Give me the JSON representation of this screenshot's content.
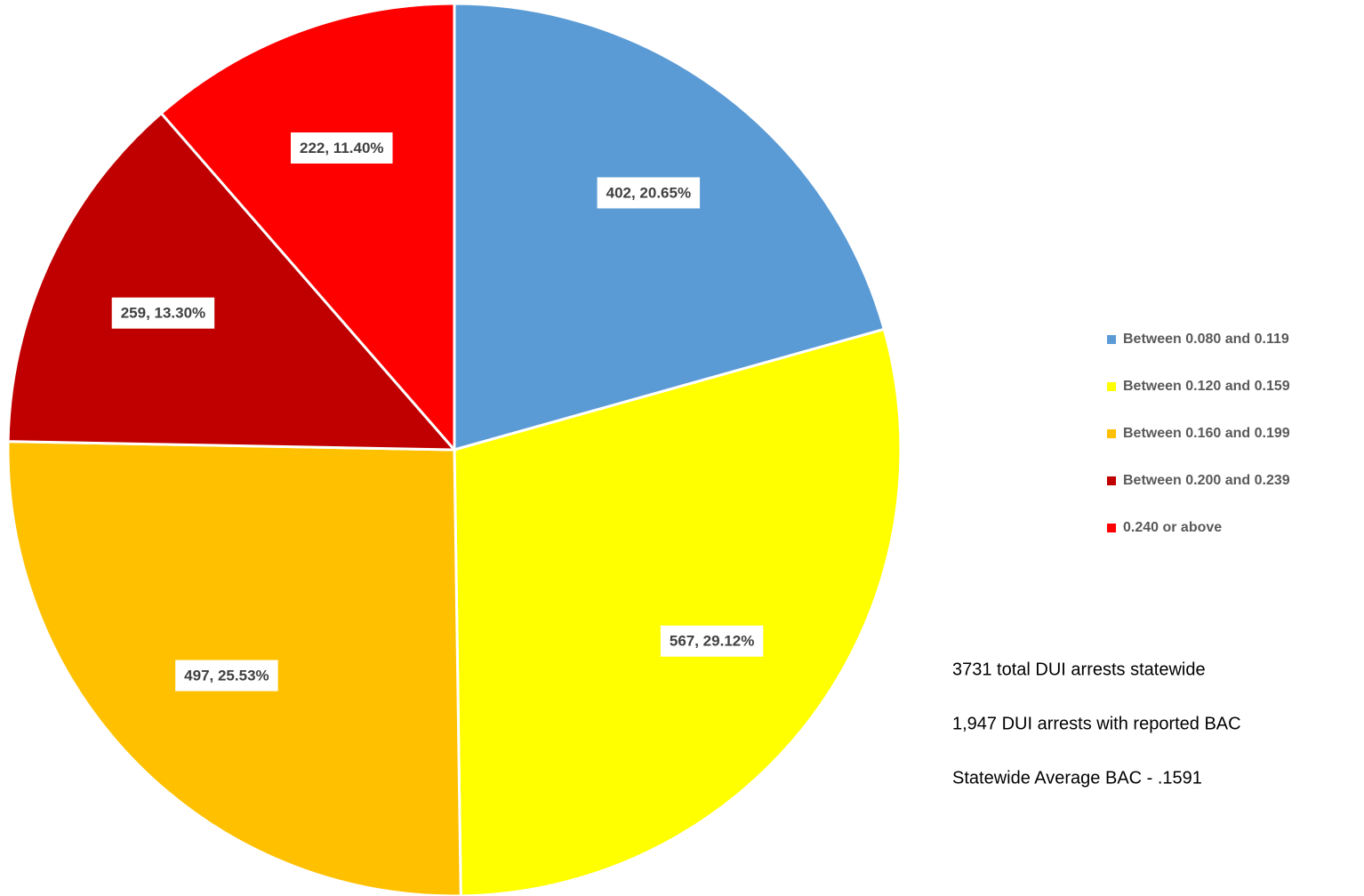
{
  "chart_data": {
    "type": "pie",
    "categories": [
      "Between 0.080 and 0.119",
      "Between  0.120 and 0.159",
      "Between 0.160 and 0.199",
      "Between 0.200 and 0.239",
      "0.240 or above"
    ],
    "values": [
      402,
      567,
      497,
      259,
      222
    ],
    "value_labels": [
      "402, 20.65%",
      "567, 29.12%",
      "497, 25.53%",
      "259, 13.30%",
      "222, 11.40%"
    ],
    "colors": [
      "#5b9bd5",
      "#ffff00",
      "#ffc000",
      "#c00000",
      "#ff0000"
    ],
    "legend": "right",
    "annotations": [
      "3731 total DUI arrests statewide",
      "1,947 DUI arrests with reported BAC",
      "Statewide Average BAC - .1591"
    ]
  }
}
